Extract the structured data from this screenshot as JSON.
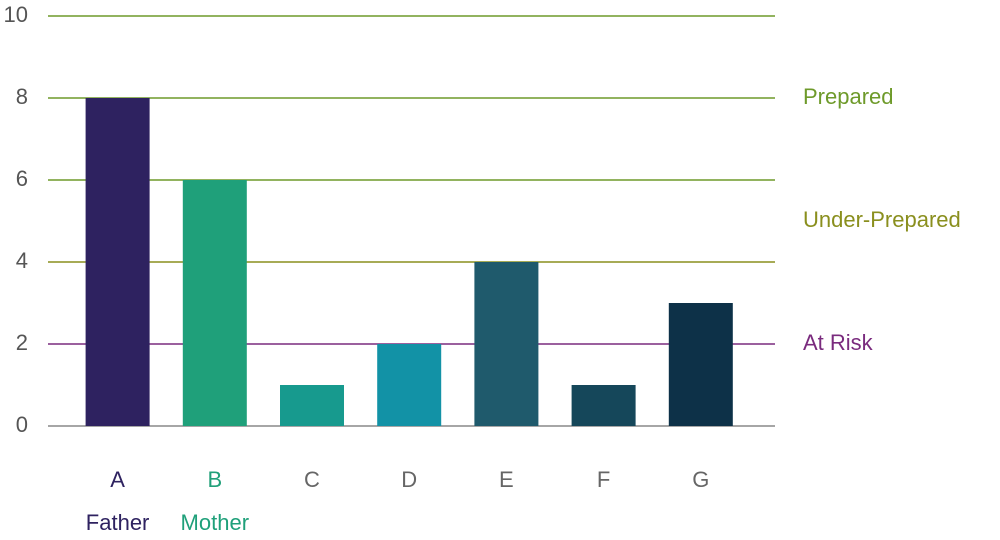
{
  "chart_data": {
    "type": "bar",
    "categories": [
      "A",
      "B",
      "C",
      "D",
      "E",
      "F",
      "G"
    ],
    "category_colors": [
      "#2e2260",
      "#21a07a",
      "#666666",
      "#666666",
      "#666666",
      "#666666",
      "#666666"
    ],
    "category_notes": [
      "Father",
      "Mother",
      null,
      null,
      null,
      null,
      null
    ],
    "values": [
      8,
      6,
      1,
      2,
      4,
      1,
      3
    ],
    "colors": [
      "#2e2260",
      "#1fa07a",
      "#179a8e",
      "#1292a6",
      "#1f5a6c",
      "#15475a",
      "#0d3148"
    ],
    "ylim": [
      0,
      10
    ],
    "yticks": [
      0,
      2,
      4,
      6,
      8,
      10
    ],
    "grid": true,
    "grid_colors": [
      "#888888",
      "#7a2b7e",
      "#8a8f1e",
      "#6e9a2a",
      "#6e9a2a",
      "#6e9a2a"
    ],
    "annotations": [
      {
        "text": "Prepared",
        "value": 8,
        "color": "#6e9a2a"
      },
      {
        "text": "Under-Prepared",
        "value": 5,
        "color": "#8a8f1e"
      },
      {
        "text": "At Risk",
        "value": 2,
        "color": "#7a2b7e"
      }
    ]
  }
}
